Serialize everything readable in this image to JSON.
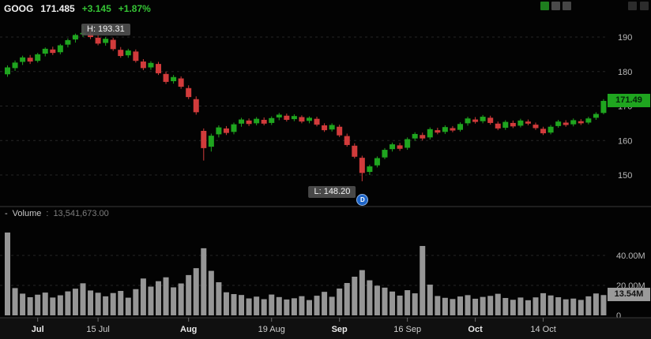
{
  "header": {
    "symbol": "GOOG",
    "last": "171.485",
    "change": "+3.145",
    "change_pct": "+1.87%"
  },
  "annotations": {
    "high": "H: 193.31",
    "low": "L: 148.20",
    "dividend": "D"
  },
  "price_axis": {
    "badge": "171.49"
  },
  "volume_axis": {
    "badge": "13.54M"
  },
  "volume_header": {
    "collapse": "-",
    "label": "Volume",
    "separator": ":",
    "value": "13,541,673.00"
  },
  "top_icons": [
    {
      "name": "quick-trade-icon",
      "color": "#1e7e1e"
    },
    {
      "name": "studies-icon",
      "color": "#4a4a4a"
    },
    {
      "name": "drawings-icon",
      "color": "#454545"
    },
    {
      "name": "pan-left-icon",
      "color": "#2c2c2c"
    },
    {
      "name": "pan-right-icon",
      "color": "#2c2c2c"
    }
  ],
  "colors": {
    "up": "#1fa51f",
    "down": "#d13b3b",
    "change_text": "#35c435",
    "volume_bar": "#969696",
    "grid": "#262626",
    "axis_text": "#b8b8b8",
    "time_text_major": "#e8e8e8",
    "time_text_minor": "#cfcfcf",
    "price_badge_bg": "#1fa51f",
    "price_badge_text": "#04250a",
    "volume_badge_bg": "#9a9a9a",
    "volume_badge_text": "#111111",
    "divider": "#3a3a3a",
    "axis_bar_bg": "#101010"
  },
  "chart_data": {
    "type": "candlestick",
    "symbol": "GOOG",
    "last": 171.49,
    "high_marker": {
      "index": 10,
      "price": 193.31,
      "label": "H: 193.31"
    },
    "low_marker": {
      "index": 47,
      "price": 148.2,
      "label": "L: 148.20",
      "dividend": "D"
    },
    "price_axis_ticks": [
      190,
      180,
      170,
      160,
      150
    ],
    "volume_axis_ticks": [
      {
        "label": "40.00M",
        "value": 40
      },
      {
        "label": "20.00M",
        "value": 20
      },
      {
        "label": "0",
        "value": 0
      }
    ],
    "volume_last": {
      "label": "13.54M",
      "value": 13.54
    },
    "time_ticks": [
      {
        "index": 4,
        "label": "Jul",
        "major": true
      },
      {
        "index": 12,
        "label": "15 Jul",
        "major": false
      },
      {
        "index": 24,
        "label": "Aug",
        "major": true
      },
      {
        "index": 35,
        "label": "19 Aug",
        "major": false
      },
      {
        "index": 44,
        "label": "Sep",
        "major": true
      },
      {
        "index": 53,
        "label": "16 Sep",
        "major": false
      },
      {
        "index": 62,
        "label": "Oct",
        "major": true
      },
      {
        "index": 71,
        "label": "14 Oct",
        "major": false
      }
    ],
    "candles": [
      [
        179.2,
        181.8,
        178.5,
        181.2,
        55.3
      ],
      [
        181.0,
        183.2,
        180.2,
        182.6,
        18.2
      ],
      [
        182.8,
        184.6,
        181.9,
        184.1,
        14.5
      ],
      [
        184.0,
        184.8,
        182.2,
        182.9,
        12.1
      ],
      [
        183.1,
        185.4,
        182.6,
        185.0,
        13.8
      ],
      [
        185.2,
        187.0,
        184.4,
        186.6,
        15.2
      ],
      [
        186.4,
        187.2,
        184.8,
        185.4,
        11.9
      ],
      [
        185.6,
        188.0,
        185.0,
        187.6,
        13.4
      ],
      [
        187.8,
        189.6,
        187.0,
        189.1,
        16.0
      ],
      [
        189.3,
        191.0,
        188.4,
        190.6,
        17.8
      ],
      [
        190.8,
        193.31,
        190.0,
        191.2,
        21.4
      ],
      [
        191.0,
        192.2,
        189.4,
        190.0,
        16.6
      ],
      [
        189.8,
        190.6,
        187.6,
        188.1,
        15.1
      ],
      [
        188.3,
        190.0,
        187.5,
        189.5,
        12.7
      ],
      [
        189.2,
        189.8,
        186.0,
        186.5,
        14.9
      ],
      [
        186.3,
        187.1,
        184.0,
        184.5,
        16.3
      ],
      [
        184.7,
        186.6,
        184.0,
        186.1,
        11.8
      ],
      [
        185.8,
        186.4,
        182.6,
        183.1,
        17.5
      ],
      [
        182.9,
        183.6,
        180.4,
        181.0,
        24.6
      ],
      [
        181.2,
        183.0,
        180.5,
        182.5,
        19.2
      ],
      [
        182.2,
        182.8,
        179.0,
        179.5,
        22.8
      ],
      [
        179.3,
        180.0,
        176.4,
        177.0,
        25.4
      ],
      [
        177.2,
        179.0,
        176.5,
        178.4,
        18.7
      ],
      [
        178.0,
        178.6,
        175.0,
        175.6,
        21.3
      ],
      [
        175.2,
        176.0,
        172.0,
        172.6,
        26.9
      ],
      [
        172.0,
        172.8,
        167.5,
        168.2,
        31.5
      ],
      [
        162.8,
        163.5,
        154.2,
        157.8,
        44.8
      ],
      [
        158.2,
        162.0,
        156.8,
        161.4,
        29.7
      ],
      [
        161.8,
        164.4,
        160.9,
        163.8,
        22.1
      ],
      [
        163.5,
        164.2,
        161.6,
        162.2,
        15.4
      ],
      [
        162.5,
        165.2,
        161.8,
        164.7,
        14.2
      ],
      [
        164.9,
        166.6,
        164.0,
        166.1,
        13.6
      ],
      [
        165.8,
        166.4,
        164.2,
        164.8,
        11.3
      ],
      [
        165.0,
        166.8,
        164.4,
        166.3,
        12.5
      ],
      [
        166.0,
        166.7,
        164.4,
        164.9,
        10.8
      ],
      [
        165.1,
        167.0,
        164.5,
        166.5,
        13.9
      ],
      [
        166.7,
        168.0,
        165.9,
        167.5,
        12.2
      ],
      [
        167.2,
        167.8,
        165.5,
        166.0,
        10.6
      ],
      [
        166.2,
        167.6,
        165.6,
        167.1,
        11.4
      ],
      [
        166.8,
        167.3,
        165.0,
        165.5,
        12.8
      ],
      [
        165.7,
        167.0,
        165.0,
        166.6,
        10.2
      ],
      [
        166.3,
        166.9,
        164.1,
        164.6,
        13.1
      ],
      [
        164.4,
        165.0,
        162.5,
        163.0,
        15.7
      ],
      [
        163.2,
        165.0,
        162.6,
        164.5,
        12.4
      ],
      [
        164.0,
        164.6,
        161.0,
        161.5,
        17.9
      ],
      [
        161.3,
        162.0,
        158.2,
        158.7,
        21.6
      ],
      [
        158.5,
        159.2,
        154.8,
        155.3,
        25.8
      ],
      [
        155.0,
        155.6,
        148.2,
        150.6,
        30.2
      ],
      [
        150.9,
        153.0,
        150.0,
        152.5,
        23.4
      ],
      [
        152.8,
        155.4,
        152.2,
        154.9,
        19.8
      ],
      [
        155.1,
        157.8,
        154.6,
        157.3,
        18.5
      ],
      [
        157.5,
        159.4,
        156.8,
        158.9,
        15.9
      ],
      [
        158.6,
        159.3,
        157.0,
        157.6,
        13.2
      ],
      [
        157.9,
        160.9,
        157.3,
        160.4,
        16.8
      ],
      [
        160.6,
        162.4,
        159.9,
        161.9,
        14.7
      ],
      [
        161.6,
        162.3,
        160.0,
        160.6,
        46.3
      ],
      [
        160.9,
        163.8,
        160.3,
        163.3,
        20.5
      ],
      [
        163.0,
        163.7,
        161.8,
        162.3,
        12.9
      ],
      [
        162.5,
        164.4,
        161.9,
        163.9,
        11.7
      ],
      [
        163.6,
        164.2,
        162.4,
        162.9,
        10.9
      ],
      [
        163.1,
        165.3,
        162.6,
        164.8,
        12.6
      ],
      [
        165.0,
        166.9,
        164.3,
        166.4,
        13.5
      ],
      [
        166.1,
        166.8,
        164.9,
        165.4,
        11.1
      ],
      [
        165.6,
        167.4,
        165.0,
        166.9,
        12.3
      ],
      [
        166.6,
        167.2,
        164.6,
        165.1,
        13.0
      ],
      [
        164.9,
        165.5,
        163.0,
        163.5,
        14.4
      ],
      [
        163.7,
        165.9,
        163.1,
        165.4,
        11.6
      ],
      [
        165.1,
        165.8,
        163.6,
        164.1,
        10.4
      ],
      [
        164.3,
        166.3,
        163.8,
        165.8,
        11.9
      ],
      [
        165.5,
        166.1,
        164.4,
        164.9,
        10.1
      ],
      [
        164.6,
        165.2,
        163.1,
        163.6,
        12.0
      ],
      [
        163.4,
        164.0,
        161.6,
        162.1,
        14.8
      ],
      [
        162.3,
        164.5,
        161.8,
        164.0,
        13.3
      ],
      [
        164.2,
        166.0,
        163.7,
        165.5,
        12.1
      ],
      [
        165.2,
        165.9,
        164.0,
        164.5,
        10.7
      ],
      [
        164.7,
        166.4,
        164.1,
        165.9,
        11.2
      ],
      [
        165.6,
        166.2,
        164.5,
        165.0,
        10.3
      ],
      [
        165.2,
        166.9,
        164.7,
        166.4,
        12.7
      ],
      [
        166.6,
        168.2,
        166.0,
        167.7,
        14.6
      ],
      [
        168.0,
        172.0,
        167.6,
        171.49,
        13.54
      ]
    ]
  }
}
